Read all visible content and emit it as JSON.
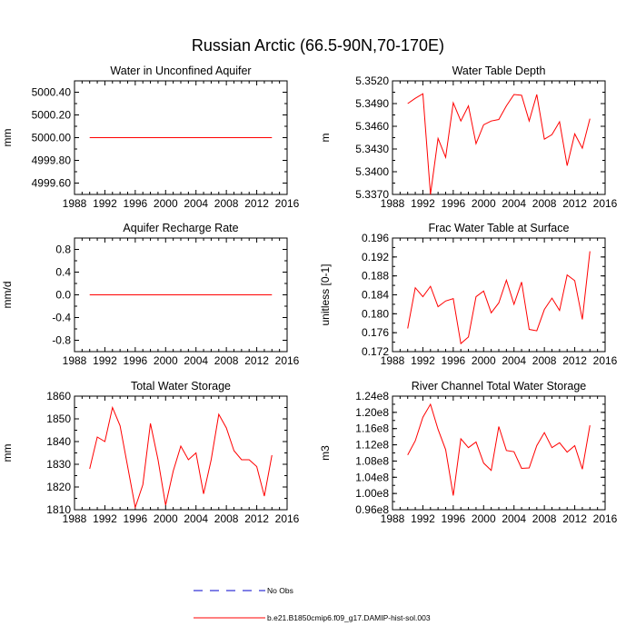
{
  "title": "Russian Arctic (66.5-90N,70-170E)",
  "legend": {
    "items": [
      {
        "label": "No Obs",
        "color": "#0000cc",
        "style": "dashed"
      },
      {
        "label": "b.e21.B1850cmip6.f09_g17.DAMIP-hist-sol.003",
        "color": "#ff0000",
        "style": "solid"
      }
    ]
  },
  "chart_data": [
    {
      "type": "line",
      "title": "Water in Unconfined Aquifer",
      "ylabel": "mm",
      "xlim": [
        1988,
        2016
      ],
      "ylim": [
        4999.5,
        5000.5
      ],
      "xticks": [
        "1988",
        "1992",
        "1996",
        "2000",
        "2004",
        "2008",
        "2012",
        "2016"
      ],
      "yticks": [
        {
          "v": 4999.6,
          "t": "4999.60"
        },
        {
          "v": 4999.8,
          "t": "4999.80"
        },
        {
          "v": 5000.0,
          "t": "5000.00"
        },
        {
          "v": 5000.2,
          "t": "5000.20"
        },
        {
          "v": 5000.4,
          "t": "5000.40"
        }
      ],
      "x": [
        1990,
        1991,
        1992,
        1993,
        1994,
        1995,
        1996,
        1997,
        1998,
        1999,
        2000,
        2001,
        2002,
        2003,
        2004,
        2005,
        2006,
        2007,
        2008,
        2009,
        2010,
        2011,
        2012,
        2013,
        2014
      ],
      "series": [
        {
          "color": "#ff0000",
          "values": [
            5000,
            5000,
            5000,
            5000,
            5000,
            5000,
            5000,
            5000,
            5000,
            5000,
            5000,
            5000,
            5000,
            5000,
            5000,
            5000,
            5000,
            5000,
            5000,
            5000,
            5000,
            5000,
            5000,
            5000,
            5000
          ]
        }
      ]
    },
    {
      "type": "line",
      "title": "Water Table Depth",
      "ylabel": "m",
      "xlim": [
        1988,
        2016
      ],
      "ylim": [
        5.337,
        5.352
      ],
      "xticks": [
        "1988",
        "1992",
        "1996",
        "2000",
        "2004",
        "2008",
        "2012",
        "2016"
      ],
      "yticks": [
        {
          "v": 5.337,
          "t": "5.3370"
        },
        {
          "v": 5.34,
          "t": "5.3400"
        },
        {
          "v": 5.343,
          "t": "5.3430"
        },
        {
          "v": 5.346,
          "t": "5.3460"
        },
        {
          "v": 5.349,
          "t": "5.3490"
        },
        {
          "v": 5.352,
          "t": "5.3520"
        }
      ],
      "x": [
        1990,
        1991,
        1992,
        1993,
        1994,
        1995,
        1996,
        1997,
        1998,
        1999,
        2000,
        2001,
        2002,
        2003,
        2004,
        2005,
        2006,
        2007,
        2008,
        2009,
        2010,
        2011,
        2012,
        2013,
        2014
      ],
      "series": [
        {
          "color": "#ff0000",
          "values": [
            5.349,
            5.3497,
            5.3503,
            5.337,
            5.3444,
            5.3419,
            5.3491,
            5.3467,
            5.3487,
            5.3437,
            5.3462,
            5.3467,
            5.3469,
            5.3487,
            5.3502,
            5.3501,
            5.3467,
            5.3502,
            5.3443,
            5.3449,
            5.3466,
            5.3408,
            5.345,
            5.3431,
            5.347
          ]
        }
      ]
    },
    {
      "type": "line",
      "title": "Aquifer Recharge Rate",
      "ylabel": "mm/d",
      "xlim": [
        1988,
        2016
      ],
      "ylim": [
        -1.0,
        1.0
      ],
      "xticks": [
        "1988",
        "1992",
        "1996",
        "2000",
        "2004",
        "2008",
        "2012",
        "2016"
      ],
      "yticks": [
        {
          "v": -0.8,
          "t": "-0.8"
        },
        {
          "v": -0.4,
          "t": "-0.4"
        },
        {
          "v": 0.0,
          "t": "0.0"
        },
        {
          "v": 0.4,
          "t": "0.4"
        },
        {
          "v": 0.8,
          "t": "0.8"
        }
      ],
      "x": [
        1990,
        1991,
        1992,
        1993,
        1994,
        1995,
        1996,
        1997,
        1998,
        1999,
        2000,
        2001,
        2002,
        2003,
        2004,
        2005,
        2006,
        2007,
        2008,
        2009,
        2010,
        2011,
        2012,
        2013,
        2014
      ],
      "series": [
        {
          "color": "#ff0000",
          "values": [
            0,
            0,
            0,
            0,
            0,
            0,
            0,
            0,
            0,
            0,
            0,
            0,
            0,
            0,
            0,
            0,
            0,
            0,
            0,
            0,
            0,
            0,
            0,
            0,
            0
          ]
        }
      ]
    },
    {
      "type": "line",
      "title": "Frac Water Table at Surface",
      "ylabel": "unitless [0-1]",
      "xlim": [
        1988,
        2016
      ],
      "ylim": [
        0.172,
        0.196
      ],
      "xticks": [
        "1988",
        "1992",
        "1996",
        "2000",
        "2004",
        "2008",
        "2012",
        "2016"
      ],
      "yticks": [
        {
          "v": 0.172,
          "t": "0.172"
        },
        {
          "v": 0.176,
          "t": "0.176"
        },
        {
          "v": 0.18,
          "t": "0.180"
        },
        {
          "v": 0.184,
          "t": "0.184"
        },
        {
          "v": 0.188,
          "t": "0.188"
        },
        {
          "v": 0.192,
          "t": "0.192"
        },
        {
          "v": 0.196,
          "t": "0.196"
        }
      ],
      "x": [
        1990,
        1991,
        1992,
        1993,
        1994,
        1995,
        1996,
        1997,
        1998,
        1999,
        2000,
        2001,
        2002,
        2003,
        2004,
        2005,
        2006,
        2007,
        2008,
        2009,
        2010,
        2011,
        2012,
        2013,
        2014
      ],
      "series": [
        {
          "color": "#ff0000",
          "values": [
            0.1769,
            0.1855,
            0.1836,
            0.1858,
            0.1815,
            0.1827,
            0.1832,
            0.1737,
            0.1751,
            0.1836,
            0.1848,
            0.1802,
            0.1823,
            0.1871,
            0.182,
            0.1867,
            0.1767,
            0.1764,
            0.1809,
            0.1833,
            0.1807,
            0.1882,
            0.187,
            0.1788,
            0.1932
          ]
        }
      ]
    },
    {
      "type": "line",
      "title": "Total Water Storage",
      "ylabel": "mm",
      "xlim": [
        1988,
        2016
      ],
      "ylim": [
        1810,
        1860
      ],
      "xticks": [
        "1988",
        "1992",
        "1996",
        "2000",
        "2004",
        "2008",
        "2012",
        "2016"
      ],
      "yticks": [
        {
          "v": 1810,
          "t": "1810"
        },
        {
          "v": 1820,
          "t": "1820"
        },
        {
          "v": 1830,
          "t": "1830"
        },
        {
          "v": 1840,
          "t": "1840"
        },
        {
          "v": 1850,
          "t": "1850"
        },
        {
          "v": 1860,
          "t": "1860"
        }
      ],
      "x": [
        1990,
        1991,
        1992,
        1993,
        1994,
        1995,
        1996,
        1997,
        1998,
        1999,
        2000,
        2001,
        2002,
        2003,
        2004,
        2005,
        2006,
        2007,
        2008,
        2009,
        2010,
        2011,
        2012,
        2013,
        2014
      ],
      "series": [
        {
          "color": "#ff0000",
          "values": [
            1828,
            1842,
            1840,
            1855,
            1847,
            1829,
            1811,
            1821,
            1848,
            1832,
            1812,
            1827,
            1838,
            1832,
            1835,
            1817,
            1832,
            1852,
            1846,
            1836,
            1832,
            1832,
            1829,
            1816,
            1834
          ]
        }
      ]
    },
    {
      "type": "line",
      "title": "River Channel Total Water Storage",
      "ylabel": "m3",
      "xlim": [
        1988,
        2016
      ],
      "ylim": [
        96000000.0,
        124000000.0
      ],
      "xticks": [
        "1988",
        "1992",
        "1996",
        "2000",
        "2004",
        "2008",
        "2012",
        "2016"
      ],
      "yticks": [
        {
          "v": 96000000,
          "t": "0.96e8"
        },
        {
          "v": 100000000,
          "t": "1.00e8"
        },
        {
          "v": 104000000,
          "t": "1.04e8"
        },
        {
          "v": 108000000,
          "t": "1.08e8"
        },
        {
          "v": 112000000,
          "t": "1.12e8"
        },
        {
          "v": 116000000,
          "t": "1.16e8"
        },
        {
          "v": 120000000,
          "t": "1.20e8"
        },
        {
          "v": 124000000,
          "t": "1.24e8"
        }
      ],
      "x": [
        1990,
        1991,
        1992,
        1993,
        1994,
        1995,
        1996,
        1997,
        1998,
        1999,
        2000,
        2001,
        2002,
        2003,
        2004,
        2005,
        2006,
        2007,
        2008,
        2009,
        2010,
        2011,
        2012,
        2013,
        2014
      ],
      "series": [
        {
          "color": "#ff0000",
          "values": [
            109500000,
            113000000,
            118800000,
            122000000,
            115800000,
            110800000,
            99500000,
            113500000,
            111300000,
            112700000,
            107500000,
            105700000,
            116500000,
            110600000,
            110300000,
            106200000,
            106300000,
            111800000,
            115000000,
            111300000,
            112500000,
            110200000,
            111800000,
            106000000,
            116800000
          ]
        }
      ]
    }
  ]
}
